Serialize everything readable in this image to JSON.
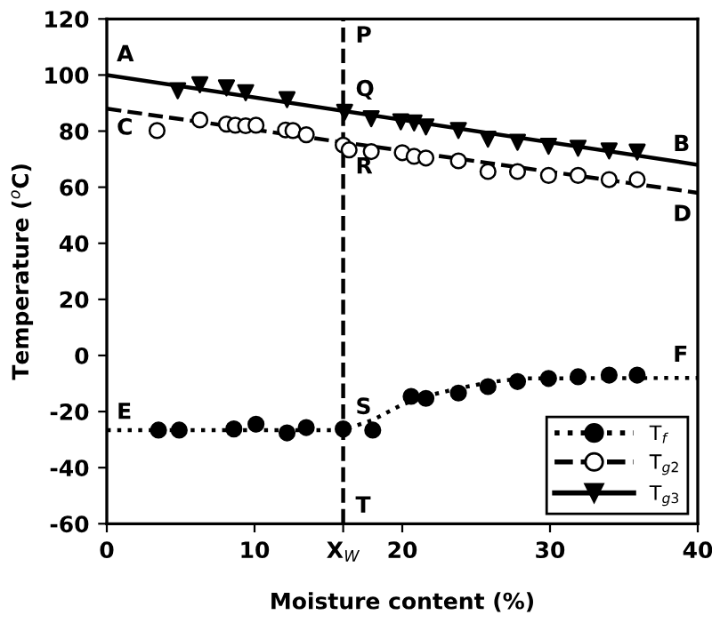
{
  "chart_data": {
    "type": "scatter",
    "xlabel": "Moisture content (%)",
    "ylabel": "Temperature ($^{o}$C)",
    "xlim": [
      0,
      40
    ],
    "ylim": [
      -60,
      120
    ],
    "xticks": [
      0,
      10,
      {
        "value": 16,
        "label": "X$_{W}$"
      },
      20,
      30,
      40
    ],
    "yticks": [
      -60,
      -40,
      -20,
      0,
      20,
      40,
      60,
      80,
      100,
      120
    ],
    "grid": false,
    "legend": "bottom right",
    "ref_lines": [
      {
        "axis": "x",
        "value": 16,
        "label": null,
        "color": "#000000",
        "line_style": "dashed"
      }
    ],
    "annotations": [
      {
        "text": "A",
        "x": 0,
        "y": 100
      },
      {
        "text": "B",
        "x": 40,
        "y": 68
      },
      {
        "text": "C",
        "x": 0,
        "y": 88
      },
      {
        "text": "D",
        "x": 40,
        "y": 58
      },
      {
        "text": "E",
        "x": 0,
        "y": -26.6
      },
      {
        "text": "F",
        "x": 40,
        "y": -8
      },
      {
        "text": "P",
        "x": 16,
        "y": 120
      },
      {
        "text": "Q",
        "x": 16,
        "y": 86.7
      },
      {
        "text": "R",
        "x": 16,
        "y": 75
      },
      {
        "text": "S",
        "x": 16,
        "y": -26.6
      },
      {
        "text": "T",
        "x": 16,
        "y": -60
      }
    ],
    "series": [
      {
        "name": "T$_{f}$",
        "marker": "circle",
        "color": "#000000",
        "line_style": "dotted",
        "x": [
          3.5,
          4.9,
          8.6,
          10.1,
          12.2,
          13.5,
          16,
          18,
          20.6,
          21.6,
          23.8,
          25.8,
          27.8,
          29.9,
          31.9,
          34,
          35.9
        ],
        "values": [
          -26.6,
          -26.6,
          -26.2,
          -24.5,
          -27.6,
          -25.7,
          -26.2,
          -26.6,
          -14.6,
          -15.3,
          -13.4,
          -11.1,
          -9.3,
          -8.2,
          -7.6,
          -7,
          -7
        ]
      },
      {
        "name": "T$_{g2}$",
        "marker": "circle",
        "color": "#ffffff",
        "line_style": "dashed",
        "x": [
          3.4,
          6.3,
          8.1,
          8.7,
          9.4,
          10.1,
          12.1,
          12.6,
          13.5,
          16,
          16.4,
          17.9,
          20,
          20.8,
          21.6,
          23.8,
          25.8,
          27.8,
          29.9,
          31.9,
          34,
          35.9
        ],
        "values": [
          80.2,
          84,
          82.5,
          82.1,
          81.9,
          82.1,
          80.4,
          80.2,
          78.7,
          75,
          73.3,
          72.7,
          72.3,
          71,
          70.4,
          69.4,
          65.6,
          65.6,
          64.2,
          64.2,
          62.7,
          62.7
        ]
      },
      {
        "name": "T$_{g3}$",
        "marker": "triangle",
        "color": "#000000",
        "line_style": "solid",
        "x": [
          4.8,
          6.3,
          8.1,
          9.4,
          12.2,
          16.1,
          17.9,
          19.9,
          20.8,
          21.6,
          23.8,
          25.8,
          27.8,
          29.9,
          31.9,
          34,
          35.9
        ],
        "values": [
          94.4,
          96.5,
          95.4,
          93.7,
          91.2,
          86.7,
          84.4,
          83.3,
          82.9,
          81.5,
          80.2,
          77.1,
          76,
          74.6,
          73.9,
          72.9,
          72.5
        ]
      },
      {
        "type": "line",
        "color": "#000000",
        "line_style": "dotted",
        "x": [
          0,
          16,
          18,
          20,
          22,
          24,
          26,
          28,
          40
        ],
        "values": [
          -26.6,
          -26.6,
          -23,
          -17.5,
          -14,
          -11.5,
          -9.5,
          -8.2,
          -8
        ]
      },
      {
        "type": "line",
        "color": "#000000",
        "line_style": "dashed",
        "x": [
          0,
          40
        ],
        "values": [
          88,
          58
        ]
      },
      {
        "type": "line",
        "color": "#000000",
        "line_style": "solid",
        "x": [
          0,
          40
        ],
        "values": [
          100,
          68
        ]
      }
    ]
  }
}
